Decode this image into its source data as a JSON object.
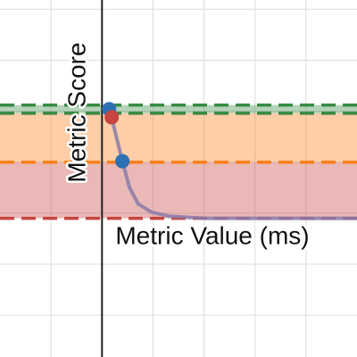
{
  "chart_data": {
    "type": "line",
    "x_label": "Metric Value (ms)",
    "y_label": "Metric Score",
    "xlim": [
      -2,
      5
    ],
    "ylim": [
      0.09,
      3.59
    ],
    "xticks": [
      -1,
      0,
      1,
      2,
      3,
      4
    ],
    "yticks": [
      0.5,
      1,
      1.5,
      2,
      2.5,
      3,
      3.5
    ],
    "grid": true,
    "bands": [
      {
        "ylim": [
          1.45,
          2.0
        ],
        "color": "#c74440"
      },
      {
        "ylim": [
          2.0,
          2.48
        ],
        "color": "#fa7e19"
      },
      {
        "ylim": [
          2.48,
          2.56
        ],
        "color": "#388c46"
      }
    ],
    "series": [
      {
        "color": "#8a7aa8",
        "x": [
          0.14,
          0.19,
          0.29,
          0.4,
          0.54,
          0.71,
          0.97,
          1.32,
          2.02,
          3.25,
          5
        ],
        "values": [
          2.52,
          2.44,
          2.23,
          2.01,
          1.75,
          1.59,
          1.51,
          1.47,
          1.45,
          1.45,
          1.45
        ]
      }
    ],
    "points": [
      {
        "x": 0.14,
        "y": 2.52,
        "color": "#2d70b3"
      },
      {
        "x": 0.19,
        "y": 2.44,
        "color": "#c74440"
      },
      {
        "x": 0.4,
        "y": 2.01,
        "color": "#2d70b3"
      }
    ]
  }
}
